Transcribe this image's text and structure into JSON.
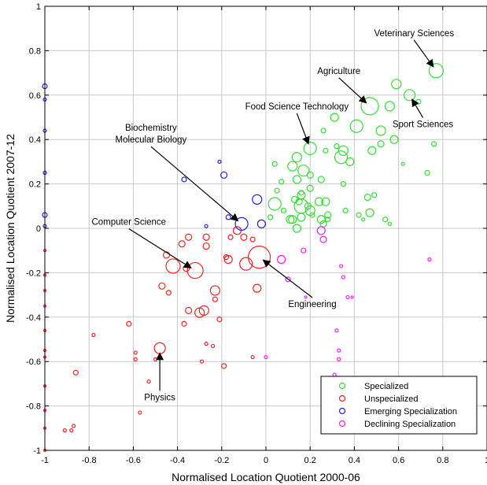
{
  "chart_data": {
    "type": "scatter",
    "title": "",
    "xlabel": "Normalised Location Quotient 2000-06",
    "ylabel": "Normalised Location Quotient 2007-12",
    "xlim": [
      -1,
      1
    ],
    "ylim": [
      -1,
      1
    ],
    "xticks": [
      -1,
      -0.8,
      -0.6,
      -0.4,
      -0.2,
      0,
      0.2,
      0.4,
      0.6,
      0.8,
      1
    ],
    "yticks": [
      -1,
      -0.8,
      -0.6,
      -0.4,
      -0.2,
      0,
      0.2,
      0.4,
      0.6,
      0.8,
      1
    ],
    "grid": true,
    "legend_position": "bottom-right",
    "marker_size_note": "bubble size varies by category",
    "series": [
      {
        "name": "Specialized",
        "color": "#33dd33",
        "points": [
          {
            "x": 0.77,
            "y": 0.71,
            "r": 9
          },
          {
            "x": 0.59,
            "y": 0.65,
            "r": 6
          },
          {
            "x": 0.65,
            "y": 0.6,
            "r": 7
          },
          {
            "x": 0.69,
            "y": 0.57,
            "r": 3
          },
          {
            "x": 0.47,
            "y": 0.55,
            "r": 11
          },
          {
            "x": 0.56,
            "y": 0.55,
            "r": 6
          },
          {
            "x": 0.31,
            "y": 0.5,
            "r": 5
          },
          {
            "x": 0.41,
            "y": 0.46,
            "r": 8
          },
          {
            "x": 0.26,
            "y": 0.44,
            "r": 3
          },
          {
            "x": 0.52,
            "y": 0.44,
            "r": 6
          },
          {
            "x": 0.58,
            "y": 0.4,
            "r": 5
          },
          {
            "x": 0.76,
            "y": 0.38,
            "r": 3
          },
          {
            "x": 0.32,
            "y": 0.37,
            "r": 3
          },
          {
            "x": 0.2,
            "y": 0.36,
            "r": 8
          },
          {
            "x": 0.27,
            "y": 0.35,
            "r": 3
          },
          {
            "x": 0.35,
            "y": 0.35,
            "r": 6
          },
          {
            "x": 0.48,
            "y": 0.35,
            "r": 5
          },
          {
            "x": 0.34,
            "y": 0.32,
            "r": 8
          },
          {
            "x": 0.14,
            "y": 0.32,
            "r": 6
          },
          {
            "x": 0.12,
            "y": 0.28,
            "r": 6
          },
          {
            "x": 0.52,
            "y": 0.38,
            "r": 4
          },
          {
            "x": 0.38,
            "y": 0.3,
            "r": 5
          },
          {
            "x": 0.04,
            "y": 0.29,
            "r": 3
          },
          {
            "x": 0.62,
            "y": 0.29,
            "r": 2
          },
          {
            "x": 0.17,
            "y": 0.26,
            "r": 7
          },
          {
            "x": 0.73,
            "y": 0.25,
            "r": 3
          },
          {
            "x": 0.2,
            "y": 0.24,
            "r": 4
          },
          {
            "x": 0.14,
            "y": 0.22,
            "r": 5
          },
          {
            "x": 0.25,
            "y": 0.22,
            "r": 4
          },
          {
            "x": 0.07,
            "y": 0.21,
            "r": 3
          },
          {
            "x": 0.2,
            "y": 0.18,
            "r": 4
          },
          {
            "x": 0.05,
            "y": 0.17,
            "r": 3
          },
          {
            "x": 0.35,
            "y": 0.2,
            "r": 3
          },
          {
            "x": 0.16,
            "y": 0.15,
            "r": 5
          },
          {
            "x": 0.13,
            "y": 0.13,
            "r": 4
          },
          {
            "x": 0.15,
            "y": 0.12,
            "r": 4
          },
          {
            "x": 0.24,
            "y": 0.12,
            "r": 5
          },
          {
            "x": 0.27,
            "y": 0.12,
            "r": 5
          },
          {
            "x": 0.46,
            "y": 0.14,
            "r": 4
          },
          {
            "x": 0.49,
            "y": 0.15,
            "r": 3
          },
          {
            "x": 0.04,
            "y": 0.11,
            "r": 8
          },
          {
            "x": 0.16,
            "y": 0.1,
            "r": 9
          },
          {
            "x": 0.19,
            "y": 0.1,
            "r": 4
          },
          {
            "x": 0.08,
            "y": 0.08,
            "r": 3
          },
          {
            "x": 0.2,
            "y": 0.08,
            "r": 6
          },
          {
            "x": 0.36,
            "y": 0.08,
            "r": 3
          },
          {
            "x": 0.47,
            "y": 0.07,
            "r": 5
          },
          {
            "x": 0.28,
            "y": 0.06,
            "r": 4
          },
          {
            "x": 0.21,
            "y": 0.06,
            "r": 3
          },
          {
            "x": 0.42,
            "y": 0.06,
            "r": 3
          },
          {
            "x": 0.02,
            "y": 0.05,
            "r": 3
          },
          {
            "x": 0.11,
            "y": 0.04,
            "r": 5
          },
          {
            "x": 0.16,
            "y": 0.05,
            "r": 5
          },
          {
            "x": 0.25,
            "y": 0.04,
            "r": 5
          },
          {
            "x": 0.28,
            "y": 0.04,
            "r": 3
          },
          {
            "x": 0.44,
            "y": 0.04,
            "r": 2
          },
          {
            "x": 0.54,
            "y": 0.04,
            "r": 3
          },
          {
            "x": 0.56,
            "y": 0.02,
            "r": 2
          },
          {
            "x": 0.14,
            "y": 0.0,
            "r": 5
          },
          {
            "x": 0.26,
            "y": 0.02,
            "r": 4
          },
          {
            "x": 0.12,
            "y": 0.04,
            "r": 5
          },
          {
            "x": 0.16,
            "y": 0.16,
            "r": 3
          }
        ]
      },
      {
        "name": "Unspecialized",
        "color": "#ee2222",
        "points": [
          {
            "x": -0.03,
            "y": -0.13,
            "r": 14
          },
          {
            "x": -0.32,
            "y": -0.19,
            "r": 10
          },
          {
            "x": -0.42,
            "y": -0.17,
            "r": 9
          },
          {
            "x": -0.09,
            "y": -0.16,
            "r": 8
          },
          {
            "x": -0.17,
            "y": -0.14,
            "r": 5
          },
          {
            "x": -0.13,
            "y": -0.01,
            "r": 5
          },
          {
            "x": -0.1,
            "y": -0.04,
            "r": 4
          },
          {
            "x": -0.16,
            "y": -0.04,
            "r": 3
          },
          {
            "x": -0.27,
            "y": -0.04,
            "r": 4
          },
          {
            "x": -0.35,
            "y": -0.04,
            "r": 4
          },
          {
            "x": -0.38,
            "y": -0.07,
            "r": 4
          },
          {
            "x": -0.06,
            "y": -0.05,
            "r": 3
          },
          {
            "x": -0.27,
            "y": -0.08,
            "r": 4
          },
          {
            "x": -0.45,
            "y": -0.12,
            "r": 4
          },
          {
            "x": -0.18,
            "y": -0.13,
            "r": 3
          },
          {
            "x": -0.36,
            "y": -0.18,
            "r": 4
          },
          {
            "x": -0.23,
            "y": -0.28,
            "r": 6
          },
          {
            "x": -0.47,
            "y": -0.26,
            "r": 4
          },
          {
            "x": -0.23,
            "y": -0.32,
            "r": 3
          },
          {
            "x": -0.44,
            "y": -0.29,
            "r": 3
          },
          {
            "x": -0.04,
            "y": -0.27,
            "r": 5
          },
          {
            "x": -0.3,
            "y": -0.38,
            "r": 6
          },
          {
            "x": -0.28,
            "y": -0.37,
            "r": 6
          },
          {
            "x": -0.35,
            "y": -0.37,
            "r": 4
          },
          {
            "x": -0.21,
            "y": -0.41,
            "r": 3
          },
          {
            "x": -0.37,
            "y": -0.43,
            "r": 3
          },
          {
            "x": -0.62,
            "y": -0.43,
            "r": 3
          },
          {
            "x": -0.78,
            "y": -0.48,
            "r": 2
          },
          {
            "x": -0.48,
            "y": -0.54,
            "r": 7
          },
          {
            "x": -0.27,
            "y": -0.52,
            "r": 2
          },
          {
            "x": -0.24,
            "y": -0.53,
            "r": 2
          },
          {
            "x": -0.59,
            "y": -0.56,
            "r": 2
          },
          {
            "x": -0.59,
            "y": -0.59,
            "r": 2
          },
          {
            "x": -0.5,
            "y": -0.59,
            "r": 2
          },
          {
            "x": -0.06,
            "y": -0.58,
            "r": 2
          },
          {
            "x": -0.29,
            "y": -0.6,
            "r": 2
          },
          {
            "x": -0.19,
            "y": -0.62,
            "r": 3
          },
          {
            "x": -0.86,
            "y": -0.65,
            "r": 3
          },
          {
            "x": -0.53,
            "y": -0.69,
            "r": 2
          },
          {
            "x": -0.57,
            "y": -0.83,
            "r": 2
          },
          {
            "x": -0.87,
            "y": -0.89,
            "r": 2
          },
          {
            "x": -0.88,
            "y": -0.91,
            "r": 2
          },
          {
            "x": -0.91,
            "y": -0.91,
            "r": 2
          },
          {
            "x": -1.0,
            "y": -0.1,
            "r": 1.5
          },
          {
            "x": -1.0,
            "y": -0.21,
            "r": 1.5
          },
          {
            "x": -1.0,
            "y": -0.28,
            "r": 1.5
          },
          {
            "x": -1.0,
            "y": -0.35,
            "r": 1.5
          },
          {
            "x": -1.0,
            "y": -0.46,
            "r": 1.5
          },
          {
            "x": -1.0,
            "y": -0.55,
            "r": 1.5
          },
          {
            "x": -1.0,
            "y": -0.58,
            "r": 1.5
          },
          {
            "x": -1.0,
            "y": -0.71,
            "r": 1.5
          },
          {
            "x": -1.0,
            "y": -0.82,
            "r": 1.5
          },
          {
            "x": -1.0,
            "y": -0.9,
            "r": 1.5
          },
          {
            "x": -1.0,
            "y": -1.0,
            "r": 1.5
          }
        ]
      },
      {
        "name": "Emerging Specialization",
        "color": "#2222dd",
        "points": [
          {
            "x": -1.0,
            "y": 0.64,
            "r": 3
          },
          {
            "x": -1.0,
            "y": 0.58,
            "r": 2
          },
          {
            "x": -1.0,
            "y": 0.44,
            "r": 2
          },
          {
            "x": -1.0,
            "y": 0.25,
            "r": 2
          },
          {
            "x": -1.0,
            "y": 0.06,
            "r": 3
          },
          {
            "x": -1.0,
            "y": 0.01,
            "r": 2
          },
          {
            "x": -0.21,
            "y": 0.3,
            "r": 2
          },
          {
            "x": -0.37,
            "y": 0.22,
            "r": 3
          },
          {
            "x": -0.19,
            "y": 0.24,
            "r": 4
          },
          {
            "x": -0.27,
            "y": 0.01,
            "r": 2
          },
          {
            "x": -0.17,
            "y": 0.05,
            "r": 3
          },
          {
            "x": -0.11,
            "y": 0.02,
            "r": 8
          },
          {
            "x": -0.04,
            "y": 0.13,
            "r": 6
          },
          {
            "x": -0.02,
            "y": 0.02,
            "r": 5
          }
        ]
      },
      {
        "name": "Declining Specialization",
        "color": "#ee22ee",
        "points": [
          {
            "x": 0.25,
            "y": -0.01,
            "r": 5
          },
          {
            "x": 0.26,
            "y": -0.05,
            "r": 4
          },
          {
            "x": 0.07,
            "y": -0.14,
            "r": 5
          },
          {
            "x": 0.17,
            "y": -0.1,
            "r": 3
          },
          {
            "x": 0.1,
            "y": -0.23,
            "r": 3
          },
          {
            "x": 0.34,
            "y": -0.17,
            "r": 2
          },
          {
            "x": 0.35,
            "y": -0.22,
            "r": 2
          },
          {
            "x": 0.74,
            "y": -0.14,
            "r": 2
          },
          {
            "x": 0.37,
            "y": -0.31,
            "r": 2
          },
          {
            "x": 0.39,
            "y": -0.31,
            "r": 1.5
          },
          {
            "x": 0.18,
            "y": -0.31,
            "r": 1.5
          },
          {
            "x": 0.0,
            "y": -0.58,
            "r": 2
          },
          {
            "x": 0.32,
            "y": -0.46,
            "r": 2
          },
          {
            "x": 0.33,
            "y": -0.55,
            "r": 2
          },
          {
            "x": 0.33,
            "y": -0.59,
            "r": 2
          },
          {
            "x": 0.31,
            "y": -0.66,
            "r": 2
          }
        ]
      }
    ],
    "annotations": [
      {
        "text": [
          "Veterinary Sciences"
        ],
        "target": [
          0.77,
          0.71
        ],
        "label_at": [
          0.67,
          0.88
        ],
        "anchor": "middle"
      },
      {
        "text": [
          "Agriculture"
        ],
        "target": [
          0.47,
          0.55
        ],
        "label_at": [
          0.33,
          0.71
        ],
        "anchor": "middle"
      },
      {
        "text": [
          "Sport Sciences"
        ],
        "target": [
          0.65,
          0.6
        ],
        "label_at": [
          0.71,
          0.47
        ],
        "anchor": "middle"
      },
      {
        "text": [
          "Food Science Technology"
        ],
        "target": [
          0.2,
          0.36
        ],
        "label_at": [
          0.14,
          0.55
        ],
        "anchor": "middle"
      },
      {
        "text": [
          "Biochemistry",
          "Molecular Biology"
        ],
        "target": [
          -0.11,
          0.02
        ],
        "label_at": [
          -0.52,
          0.4
        ],
        "anchor": "middle"
      },
      {
        "text": [
          "Computer Science"
        ],
        "target": [
          -0.32,
          -0.19
        ],
        "label_at": [
          -0.62,
          0.03
        ],
        "anchor": "middle"
      },
      {
        "text": [
          "Engineering"
        ],
        "target": [
          -0.03,
          -0.13
        ],
        "label_at": [
          0.21,
          -0.34
        ],
        "anchor": "middle"
      },
      {
        "text": [
          "Physics"
        ],
        "target": [
          -0.48,
          -0.54
        ],
        "label_at": [
          -0.48,
          -0.76
        ],
        "anchor": "middle"
      }
    ]
  }
}
